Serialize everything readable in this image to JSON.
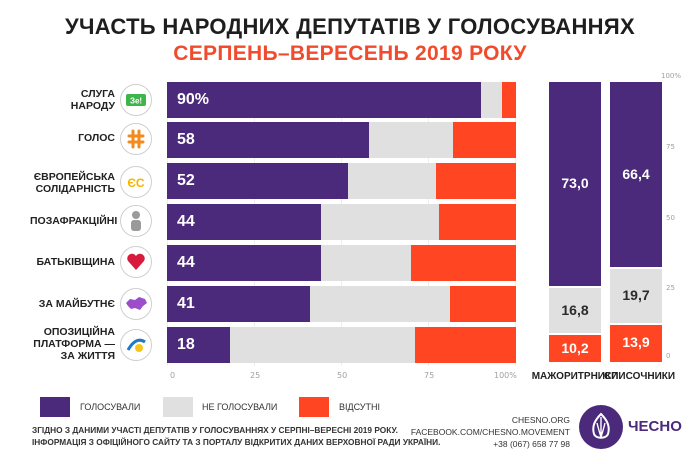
{
  "title": "УЧАСТЬ НАРОДНИХ ДЕПУТАТІВ У ГОЛОСУВАННЯХ",
  "subtitle": "СЕРПЕНЬ–ВЕРЕСЕНЬ 2019 РОКУ",
  "colors": {
    "voted": "#4b2a7b",
    "not_voted": "#e0e0e0",
    "absent": "#ff4522"
  },
  "chart_data": [
    {
      "type": "bar",
      "orientation": "horizontal",
      "stacked": true,
      "categories": [
        "СЛУГА НАРОДУ",
        "ГОЛОС",
        "ЄВРОПЕЙСЬКА СОЛІДАРНІСТЬ",
        "ПОЗАФРАКЦІЙНІ",
        "БАТЬКІВЩИНА",
        "ЗА МАЙБУТНЄ",
        "ОПОЗИЦІЙНА ПЛАТФОРМА — ЗА ЖИТТЯ"
      ],
      "value_labels": [
        "90%",
        "58",
        "52",
        "44",
        "44",
        "41",
        "18"
      ],
      "series": [
        {
          "name": "ГОЛОСУВАЛИ",
          "values": [
            90,
            58,
            52,
            44,
            44,
            41,
            18
          ]
        },
        {
          "name": "НЕ ГОЛОСУВАЛИ",
          "values": [
            6,
            24,
            25,
            34,
            26,
            40,
            53
          ]
        },
        {
          "name": "ВІДСУТНІ",
          "values": [
            4,
            18,
            23,
            22,
            30,
            19,
            29
          ]
        }
      ],
      "xlim": [
        0,
        100
      ],
      "xticks": [
        "0",
        "25",
        "50",
        "75",
        "100%"
      ]
    },
    {
      "type": "bar",
      "orientation": "vertical",
      "stacked": true,
      "categories": [
        "МАЖОРИТРНИКИ",
        "СПИСОЧНИКИ"
      ],
      "series": [
        {
          "name": "ГОЛОСУВАЛИ",
          "values": [
            73.0,
            66.4
          ],
          "labels": [
            "73,0",
            "66,4"
          ]
        },
        {
          "name": "НЕ ГОЛОСУВАЛИ",
          "values": [
            16.8,
            19.7
          ],
          "labels": [
            "16,8",
            "19,7"
          ]
        },
        {
          "name": "ВІДСУТНІ",
          "values": [
            10.2,
            13.9
          ],
          "labels": [
            "10,2",
            "13,9"
          ]
        }
      ],
      "ylim": [
        0,
        100
      ],
      "yticks": [
        "0",
        "25",
        "50",
        "75",
        "100%"
      ]
    }
  ],
  "legend": [
    "ГОЛОСУВАЛИ",
    "НЕ ГОЛОСУВАЛИ",
    "ВІДСУТНІ"
  ],
  "note_lines": [
    "ЗГІДНО З ДАНИМИ УЧАСТІ ДЕПУТАТІВ У ГОЛОСУВАННЯХ У СЕРПНІ–ВЕРЕСНІ 2019 РОКУ.",
    "ІНФОРМАЦІЯ З ОФІЦІЙНОГО САЙТУ ТА З ПОРТАЛУ ВІДКРИТИХ ДАНИХ ВЕРХОВНОЇ РАДИ УКРАЇНИ."
  ],
  "contact": {
    "site": "CHESNO.ORG",
    "facebook": "FACEBOOK.COM/CHESNO.MOVEMENT",
    "phone": "+38 (067) 658 77 98"
  },
  "logo_text": "ЧЕСНО",
  "icons": {
    "sluha": {
      "name": "sluha-narodu-logo-icon",
      "text": "Зе!"
    },
    "holos": {
      "name": "holos-logo-icon"
    },
    "es": {
      "name": "yes-logo-icon",
      "text": "ЄС"
    },
    "poza": {
      "name": "person-silhouette-icon"
    },
    "batk": {
      "name": "heart-icon"
    },
    "maibutnie": {
      "name": "ukraine-map-icon"
    },
    "opzzh": {
      "name": "opzzh-logo-icon"
    }
  }
}
